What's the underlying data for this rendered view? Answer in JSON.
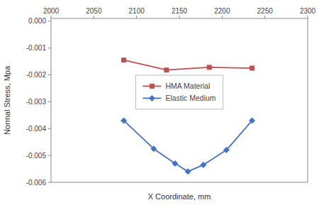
{
  "chart_data": {
    "type": "line",
    "xlabel": "X Coordinate, mm",
    "ylabel": "Normal Stress, Mpa",
    "series": [
      {
        "name": "HMA Material",
        "color": "#c0504d",
        "marker": "square",
        "x": [
          2085,
          2135,
          2185,
          2235
        ],
        "values": [
          -0.00145,
          -0.00182,
          -0.00172,
          -0.00175
        ]
      },
      {
        "name": "Elastic Medium",
        "color": "#4472c4",
        "marker": "diamond",
        "x": [
          2085,
          2120,
          2145,
          2160,
          2178,
          2205,
          2235
        ],
        "values": [
          -0.0037,
          -0.00475,
          -0.0053,
          -0.0056,
          -0.00535,
          -0.0048,
          -0.0037
        ]
      }
    ],
    "xlim": [
      2000,
      2300
    ],
    "ylim": [
      -0.006,
      0.0001
    ],
    "xticks": [
      2000,
      2050,
      2100,
      2150,
      2200,
      2250,
      2300
    ],
    "yticks": [
      {
        "value": 0.0,
        "label": "0.000"
      },
      {
        "value": -0.001,
        "label": "-0.001"
      },
      {
        "value": -0.002,
        "label": "-0.002"
      },
      {
        "value": -0.003,
        "label": "-0.003"
      },
      {
        "value": -0.004,
        "label": "-0.004"
      },
      {
        "value": -0.005,
        "label": "-0.005"
      },
      {
        "value": -0.006,
        "label": "-0.006"
      }
    ],
    "grid": false,
    "legend": "center"
  }
}
